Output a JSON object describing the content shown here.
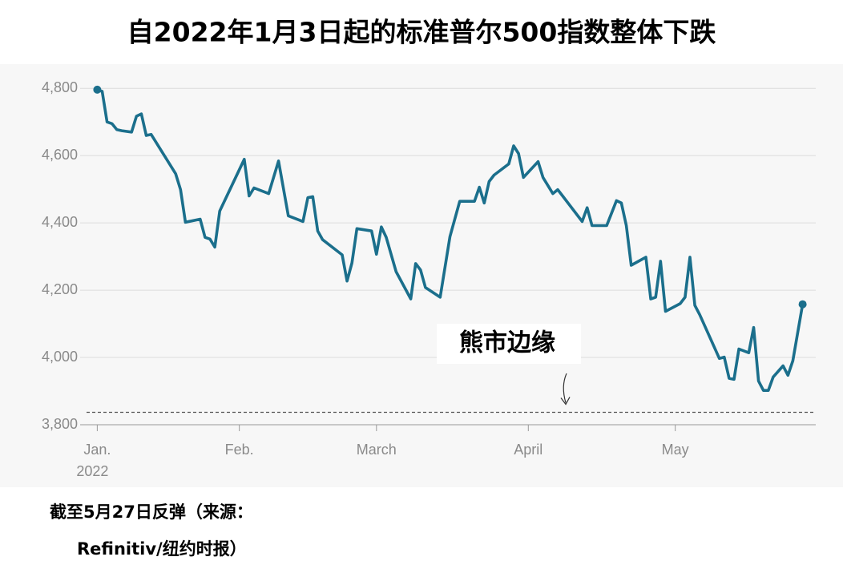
{
  "chart_data": {
    "type": "line",
    "title": "自2022年1月3日起的标准普尔500指数整体下跌",
    "footnote": [
      "截至5月27日反弹（来源：",
      "Refinitiv/纽约时报）"
    ],
    "annotation": "熊市边缘",
    "threshold": 3837,
    "color": "#1b6f8c",
    "grid": true,
    "x": [
      3,
      4,
      5,
      6,
      7,
      8,
      10,
      11,
      12,
      13,
      14,
      19,
      20,
      21,
      24,
      25,
      26,
      27,
      28,
      33,
      34,
      35,
      38,
      40,
      42,
      45,
      46,
      47,
      48,
      49,
      53,
      54,
      55,
      56,
      59,
      60,
      61,
      62,
      64,
      67,
      68,
      69,
      70,
      73,
      75,
      77,
      80,
      81,
      82,
      83,
      84,
      87,
      88,
      89,
      90,
      93,
      94,
      96,
      97,
      98,
      102,
      103,
      104,
      107,
      109,
      110,
      111,
      112,
      115,
      116,
      117,
      118,
      119,
      122,
      123,
      124,
      125,
      126,
      130,
      131,
      132,
      133,
      134,
      136,
      137,
      138,
      139,
      140,
      141,
      143,
      144,
      145,
      147
    ],
    "values": [
      4796,
      4791,
      4700,
      4695,
      4677,
      4674,
      4670,
      4717,
      4724,
      4660,
      4663,
      4546,
      4499,
      4402,
      4411,
      4357,
      4352,
      4328,
      4435,
      4589,
      4480,
      4504,
      4487,
      4584,
      4421,
      4404,
      4475,
      4478,
      4376,
      4350,
      4305,
      4227,
      4281,
      4383,
      4376,
      4307,
      4388,
      4357,
      4255,
      4174,
      4279,
      4260,
      4208,
      4179,
      4359,
      4464,
      4464,
      4506,
      4459,
      4523,
      4542,
      4575,
      4629,
      4606,
      4535,
      4582,
      4535,
      4487,
      4499,
      4480,
      4404,
      4445,
      4392,
      4392,
      4466,
      4459,
      4392,
      4274,
      4298,
      4174,
      4179,
      4286,
      4137,
      4160,
      4179,
      4298,
      4155,
      4127,
      3997,
      4001,
      3938,
      3935,
      4025,
      4014,
      4089,
      3930,
      3902,
      3902,
      3942,
      3975,
      3947,
      3990,
      4158
    ],
    "xlim": [
      -0.5,
      150.5
    ],
    "xticks": [
      {
        "value": 3,
        "label": "Jan."
      },
      {
        "value": 32,
        "label": "Feb."
      },
      {
        "value": 60,
        "label": "March"
      },
      {
        "value": 91,
        "label": "April"
      },
      {
        "value": 121,
        "label": "May"
      }
    ],
    "x_year_label": "2022",
    "ylim": [
      3800,
      4860
    ],
    "yticks": [
      {
        "value": 3800,
        "label": "3,800"
      },
      {
        "value": 4000,
        "label": "4,000"
      },
      {
        "value": 4200,
        "label": "4,200"
      },
      {
        "value": 4400,
        "label": "4,400"
      },
      {
        "value": 4600,
        "label": "4,600"
      },
      {
        "value": 4800,
        "label": "4,800"
      }
    ]
  }
}
